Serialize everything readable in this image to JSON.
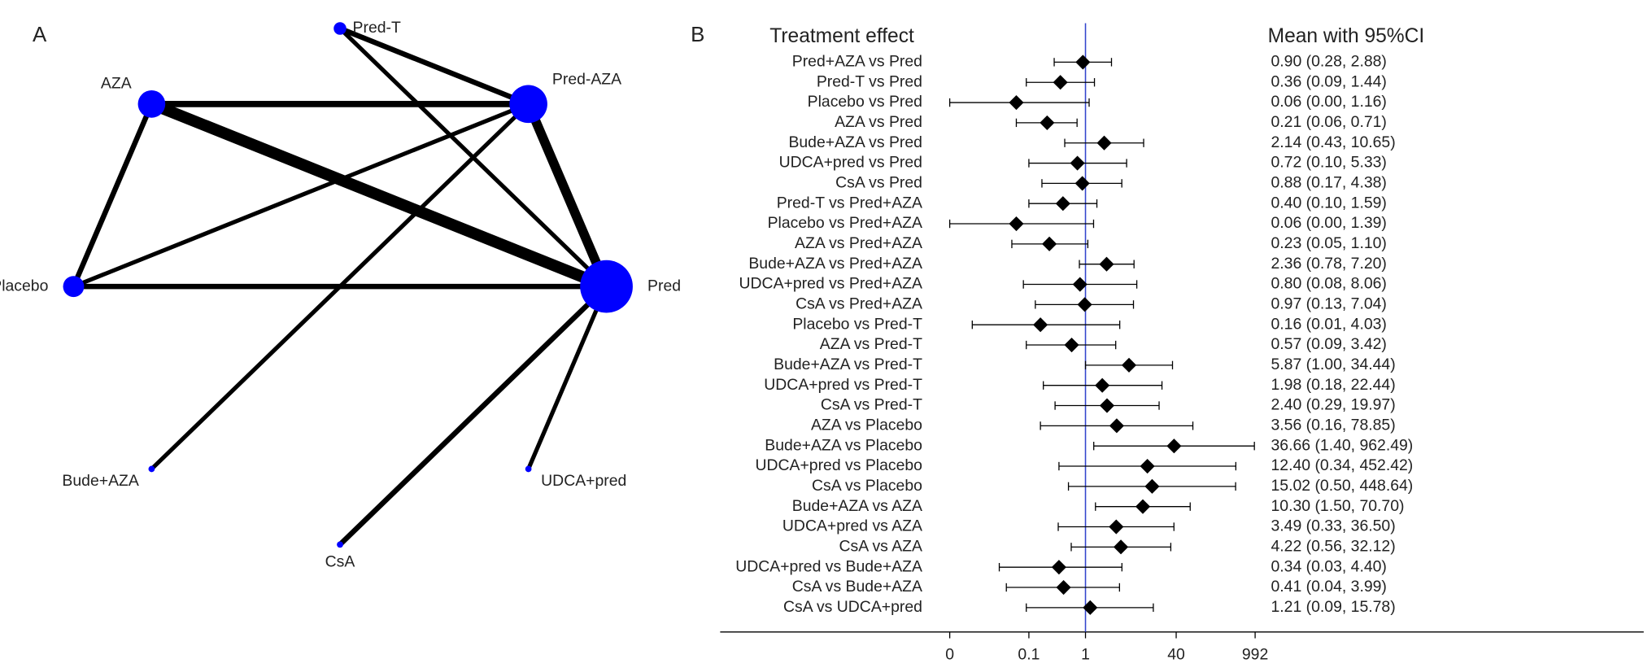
{
  "chart_data": [
    {
      "type": "network",
      "panel_label": "A",
      "node_color": "#0000ff",
      "edge_color": "#000000",
      "nodes": [
        {
          "label": "Pred-T",
          "size": 6
        },
        {
          "label": "Pred-AZA",
          "size": 18
        },
        {
          "label": "Pred",
          "size": 25
        },
        {
          "label": "UDCA+pred",
          "size": 3
        },
        {
          "label": "CsA",
          "size": 3
        },
        {
          "label": "Bude+AZA",
          "size": 3
        },
        {
          "label": "Placebo",
          "size": 10
        },
        {
          "label": "AZA",
          "size": 13
        }
      ],
      "edges": [
        {
          "from": "AZA",
          "to": "Pred",
          "weight": 11
        },
        {
          "from": "Pred-AZA",
          "to": "Pred",
          "weight": 9
        },
        {
          "from": "AZA",
          "to": "Pred-AZA",
          "weight": 6
        },
        {
          "from": "AZA",
          "to": "Placebo",
          "weight": 5
        },
        {
          "from": "Pred-T",
          "to": "Pred-AZA",
          "weight": 5
        },
        {
          "from": "Pred-T",
          "to": "Pred",
          "weight": 4
        },
        {
          "from": "Placebo",
          "to": "Pred",
          "weight": 5
        },
        {
          "from": "Placebo",
          "to": "Pred-AZA",
          "weight": 4
        },
        {
          "from": "Bude+AZA",
          "to": "Pred-AZA",
          "weight": 4
        },
        {
          "from": "CsA",
          "to": "Pred",
          "weight": 5
        },
        {
          "from": "UDCA+pred",
          "to": "Pred",
          "weight": 4
        }
      ]
    },
    {
      "type": "forest",
      "panel_label": "B",
      "label_header": "Treatment effect",
      "value_header": "Mean with 95%CI",
      "color": "#000000",
      "reference": 1,
      "reference_color": "#3344cc",
      "log_scale": true,
      "xlim": [
        0.004,
        992
      ],
      "xticks": [
        {
          "value": 0.004,
          "label": "0"
        },
        0.1,
        1,
        40,
        992
      ],
      "categories": [
        "Pred+AZA vs Pred",
        "Pred-T vs Pred",
        "Placebo vs Pred",
        "AZA vs Pred",
        "Bude+AZA vs Pred",
        "UDCA+pred vs Pred",
        "CsA vs Pred",
        "Pred-T vs Pred+AZA",
        "Placebo vs Pred+AZA",
        "AZA vs Pred+AZA",
        "Bude+AZA vs Pred+AZA",
        "UDCA+pred vs Pred+AZA",
        "CsA vs Pred+AZA",
        "Placebo vs Pred-T",
        "AZA vs Pred-T",
        "Bude+AZA vs Pred-T",
        "UDCA+pred vs Pred-T",
        "CsA vs Pred-T",
        "AZA vs Placebo",
        "Bude+AZA vs Placebo",
        "UDCA+pred vs Placebo",
        "CsA vs Placebo",
        "Bude+AZA vs AZA",
        "UDCA+pred vs AZA",
        "CsA vs AZA",
        "UDCA+pred vs Bude+AZA",
        "CsA vs Bude+AZA",
        "CsA vs UDCA+pred"
      ],
      "values": [
        0.9,
        0.36,
        0.06,
        0.21,
        2.14,
        0.72,
        0.88,
        0.4,
        0.06,
        0.23,
        2.36,
        0.8,
        0.97,
        0.16,
        0.57,
        5.87,
        1.98,
        2.4,
        3.56,
        36.66,
        12.4,
        15.02,
        10.3,
        3.49,
        4.22,
        0.34,
        0.41,
        1.21
      ],
      "lower": [
        0.28,
        0.09,
        0.004,
        0.06,
        0.43,
        0.1,
        0.17,
        0.1,
        0.004,
        0.05,
        0.78,
        0.08,
        0.13,
        0.01,
        0.09,
        1.0,
        0.18,
        0.29,
        0.16,
        1.4,
        0.34,
        0.5,
        1.5,
        0.33,
        0.56,
        0.03,
        0.04,
        0.09
      ],
      "upper": [
        2.88,
        1.44,
        1.16,
        0.71,
        10.65,
        5.33,
        4.38,
        1.59,
        1.39,
        1.1,
        7.2,
        8.06,
        7.04,
        4.03,
        3.42,
        34.44,
        22.44,
        19.97,
        78.85,
        962.49,
        452.42,
        448.64,
        70.7,
        36.5,
        32.12,
        4.4,
        3.99,
        15.78
      ],
      "value_labels": [
        "0.90 (0.28, 2.88)",
        "0.36 (0.09, 1.44)",
        "0.06 (0.00, 1.16)",
        "0.21 (0.06, 0.71)",
        "2.14 (0.43, 10.65)",
        "0.72 (0.10, 5.33)",
        "0.88 (0.17, 4.38)",
        "0.40 (0.10, 1.59)",
        "0.06 (0.00, 1.39)",
        "0.23 (0.05, 1.10)",
        "2.36 (0.78, 7.20)",
        "0.80 (0.08, 8.06)",
        "0.97 (0.13, 7.04)",
        "0.16 (0.01, 4.03)",
        "0.57 (0.09, 3.42)",
        "5.87 (1.00, 34.44)",
        "1.98 (0.18, 22.44)",
        "2.40 (0.29, 19.97)",
        "3.56 (0.16, 78.85)",
        "36.66 (1.40, 962.49)",
        "12.40 (0.34, 452.42)",
        "15.02 (0.50, 448.64)",
        "10.30 (1.50, 70.70)",
        "3.49 (0.33, 36.50)",
        "4.22 (0.56, 32.12)",
        "0.34 (0.03, 4.40)",
        "0.41 (0.04, 3.99)",
        "1.21 (0.09, 15.78)"
      ]
    }
  ]
}
